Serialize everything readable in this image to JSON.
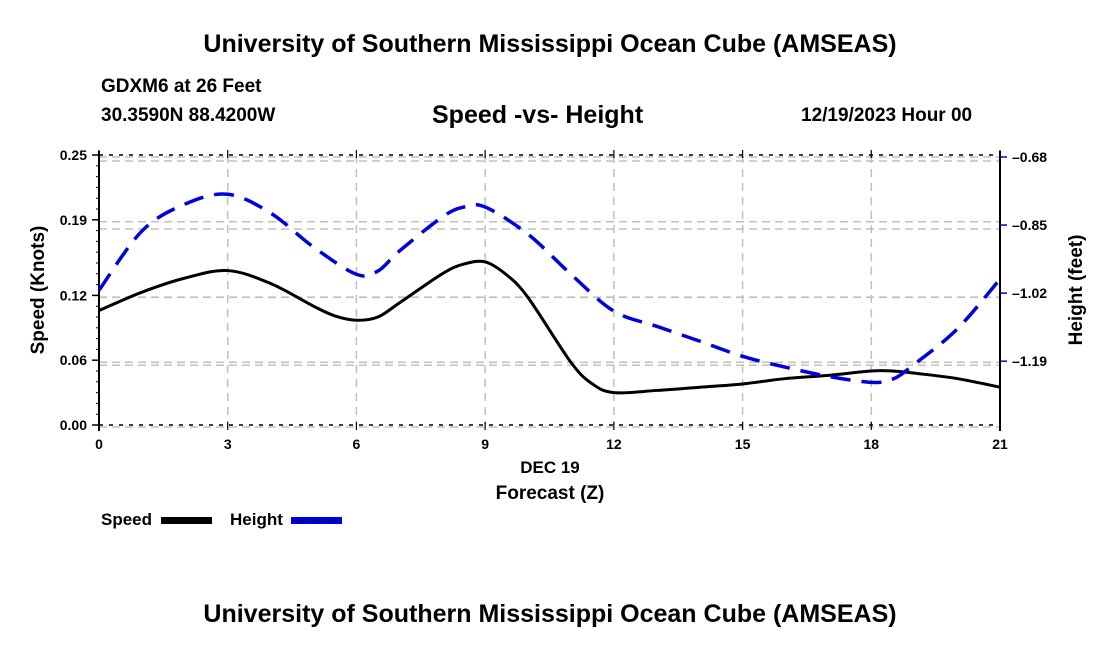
{
  "header": {
    "main_title": "University of Southern Mississippi Ocean Cube (AMSEAS)",
    "station": "GDXM6 at 26 Feet",
    "coordinates": "30.3590N  88.4200W",
    "subtitle": "Speed -vs- Height",
    "datetime": "12/19/2023 Hour 00"
  },
  "footer": {
    "title": "University of Southern Mississippi Ocean Cube (AMSEAS)"
  },
  "legend": {
    "speed_label": "Speed",
    "height_label": "Height"
  },
  "colors": {
    "speed": "#000000",
    "height": "#0000dd",
    "grid": "#c0c0c0"
  },
  "chart_data": {
    "type": "line",
    "title": "Speed -vs- Height",
    "xlabel": "Forecast (Z)",
    "xlabel_date": "DEC 19",
    "ylabel": "Speed (Knots)",
    "y2label": "Height (feet)",
    "xlim": [
      0,
      21
    ],
    "ylim": [
      0,
      0.25
    ],
    "y2lim": [
      -1.3495,
      -0.675
    ],
    "x_ticks": [
      0,
      3,
      6,
      9,
      12,
      15,
      18,
      21
    ],
    "x_tick_labels": [
      "0",
      "3",
      "6",
      "9",
      "12",
      "15",
      "18",
      "21"
    ],
    "y_ticks": [
      0.0,
      0.06,
      0.12,
      0.19,
      0.25
    ],
    "y_tick_labels": [
      "0.00",
      "0.06",
      "0.12",
      "0.19",
      "0.25"
    ],
    "y2_ticks": [
      -0.68,
      -0.85,
      -1.02,
      -1.19
    ],
    "y2_tick_labels": [
      "-0.68",
      "-0.85",
      "-1.02",
      "-1.19"
    ],
    "grid": true,
    "legend_position": "bottom-left",
    "series": [
      {
        "name": "Speed",
        "axis": "left",
        "style": "solid",
        "x": [
          0,
          1,
          2,
          3,
          4,
          5,
          5.5,
          6,
          6.5,
          7,
          8,
          8.5,
          9,
          9.5,
          10,
          11,
          11.5,
          12,
          13,
          14,
          15,
          16,
          17,
          18,
          18.5,
          19,
          20,
          21
        ],
        "values": [
          0.106,
          0.123,
          0.136,
          0.143,
          0.131,
          0.11,
          0.101,
          0.097,
          0.1,
          0.113,
          0.14,
          0.149,
          0.151,
          0.139,
          0.118,
          0.058,
          0.038,
          0.03,
          0.032,
          0.035,
          0.038,
          0.043,
          0.046,
          0.05,
          0.05,
          0.048,
          0.043,
          0.035
        ]
      },
      {
        "name": "Height",
        "axis": "right",
        "style": "dashed",
        "x": [
          0,
          1,
          2,
          3,
          4,
          5,
          6,
          6.5,
          7,
          8,
          8.5,
          9,
          10,
          11,
          12,
          13,
          14,
          15,
          16,
          17,
          18,
          18.5,
          19,
          20,
          21
        ],
        "values": [
          -1.013,
          -0.865,
          -0.798,
          -0.773,
          -0.82,
          -0.905,
          -0.973,
          -0.965,
          -0.915,
          -0.83,
          -0.805,
          -0.805,
          -0.873,
          -0.973,
          -1.065,
          -1.103,
          -1.14,
          -1.178,
          -1.205,
          -1.228,
          -1.243,
          -1.235,
          -1.198,
          -1.11,
          -0.985
        ]
      }
    ]
  }
}
